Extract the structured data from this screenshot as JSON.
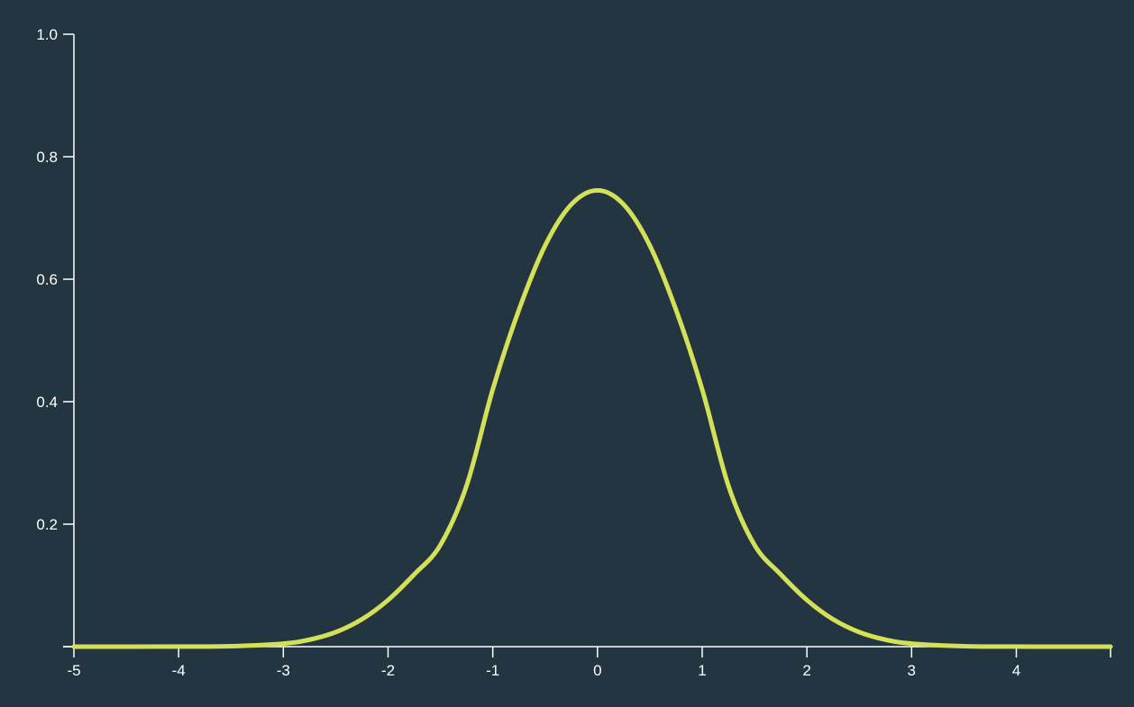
{
  "chart_data": {
    "type": "line",
    "title": "",
    "xlabel": "",
    "ylabel": "",
    "xlim": [
      -5,
      4.9
    ],
    "ylim": [
      0,
      1.0
    ],
    "x_ticks": [
      -5,
      -4,
      -3,
      -2,
      -1,
      0,
      1,
      2,
      3,
      4
    ],
    "x_tick_labels": [
      "-5",
      "-4",
      "-3",
      "-2",
      "-1",
      "0",
      "1",
      "2",
      "3",
      "4"
    ],
    "y_ticks": [
      0,
      0.2,
      0.4,
      0.6,
      0.8,
      1.0
    ],
    "y_tick_labels": [
      "",
      "0.2",
      "0.4",
      "0.6",
      "0.8",
      "1.0"
    ],
    "grid": false,
    "legend": "none",
    "series": [
      {
        "color": "#d4e157",
        "x": [
          -5,
          -4.5,
          -4,
          -3.5,
          -3,
          -2.75,
          -2.5,
          -2.25,
          -2,
          -1.75,
          -1.5,
          -1.25,
          -1,
          -0.75,
          -0.5,
          -0.25,
          0,
          0.25,
          0.5,
          0.75,
          1,
          1.25,
          1.5,
          1.75,
          2,
          2.25,
          2.5,
          2.75,
          3,
          3.5,
          4,
          4.5,
          4.9
        ],
        "y": [
          0.0,
          0.0,
          0.0001,
          0.0008,
          0.005,
          0.0114,
          0.0237,
          0.0446,
          0.0761,
          0.118,
          0.166,
          0.263,
          0.42,
          0.55,
          0.655,
          0.722,
          0.745,
          0.722,
          0.655,
          0.55,
          0.42,
          0.263,
          0.166,
          0.118,
          0.0761,
          0.0446,
          0.0237,
          0.0114,
          0.005,
          0.0008,
          0.0001,
          0.0,
          0.0
        ]
      }
    ]
  },
  "colors": {
    "background": "#223541",
    "axis": "#ffffff",
    "line": "#d4e157"
  }
}
